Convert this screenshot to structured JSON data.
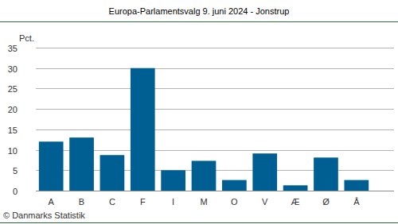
{
  "chart_data": {
    "type": "bar",
    "title": "Europa-Parlamentsvalg 9. juni 2024 - Jonstrup",
    "y_label": "Pct.",
    "source": "© Danmarks Statistik",
    "categories": [
      "A",
      "B",
      "C",
      "F",
      "I",
      "M",
      "O",
      "V",
      "Æ",
      "Ø",
      "Å"
    ],
    "values": [
      12.0,
      13.0,
      8.7,
      30.0,
      5.0,
      7.3,
      2.6,
      9.1,
      1.3,
      8.1,
      2.6
    ],
    "color": "#005f92",
    "ylim": [
      0,
      35
    ],
    "yticks": [
      0,
      5,
      10,
      15,
      20,
      25,
      30,
      35
    ],
    "grid": true
  }
}
